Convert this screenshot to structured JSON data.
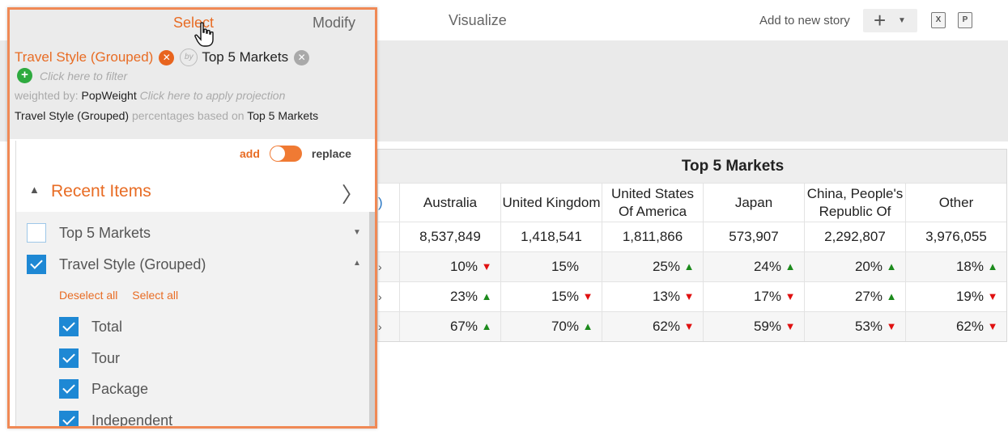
{
  "topbar": {
    "tabs": [
      "Select",
      "Modify",
      "Visualize"
    ],
    "add_story_label": "Add to new story",
    "excel_label": "X",
    "ppt_label": "P"
  },
  "panel": {
    "chip_rows": "Travel Style (Grouped)",
    "chip_cols": "Top 5 Markets",
    "by_label": "by",
    "filter_hint": "Click here to filter",
    "weighted_prefix": "weighted by:",
    "weight_name": "PopWeight",
    "weight_hint": "Click here to apply projection",
    "basis_rows": "Travel Style (Grouped)",
    "basis_mid": "percentages based on",
    "basis_cols": "Top 5 Markets",
    "toggle_add": "add",
    "toggle_replace": "replace",
    "recent_title": "Recent Items",
    "deselect_all": "Deselect all",
    "select_all": "Select all",
    "items": [
      {
        "label": "Top 5 Markets",
        "checked": false
      },
      {
        "label": "Travel Style (Grouped)",
        "checked": true
      },
      {
        "label": "Total",
        "checked": true
      },
      {
        "label": "Tour",
        "checked": true
      },
      {
        "label": "Package",
        "checked": true
      },
      {
        "label": "Independent",
        "checked": true
      }
    ]
  },
  "table": {
    "title": "Top 5 Markets",
    "columns": [
      "Australia",
      "United Kingdom",
      "United States Of America",
      "Japan",
      "China, People's Republic Of",
      "Other"
    ],
    "totals": [
      "8,537,849",
      "1,418,541",
      "1,811,866",
      "573,907",
      "2,292,807",
      "3,976,055"
    ],
    "rows": [
      [
        {
          "v": "10%",
          "d": "down"
        },
        {
          "v": "15%",
          "d": ""
        },
        {
          "v": "25%",
          "d": "up"
        },
        {
          "v": "24%",
          "d": "up"
        },
        {
          "v": "20%",
          "d": "up"
        },
        {
          "v": "18%",
          "d": "up"
        }
      ],
      [
        {
          "v": "23%",
          "d": "up"
        },
        {
          "v": "15%",
          "d": "down"
        },
        {
          "v": "13%",
          "d": "down"
        },
        {
          "v": "17%",
          "d": "down"
        },
        {
          "v": "27%",
          "d": "up"
        },
        {
          "v": "19%",
          "d": "down"
        }
      ],
      [
        {
          "v": "67%",
          "d": "up"
        },
        {
          "v": "70%",
          "d": "up"
        },
        {
          "v": "62%",
          "d": "down"
        },
        {
          "v": "59%",
          "d": "down"
        },
        {
          "v": "53%",
          "d": "down"
        },
        {
          "v": "62%",
          "d": "down"
        }
      ]
    ]
  },
  "colors": {
    "accent": "#e86c24",
    "up": "#1c8a1c",
    "down": "#e01010",
    "check": "#1e88d4"
  }
}
